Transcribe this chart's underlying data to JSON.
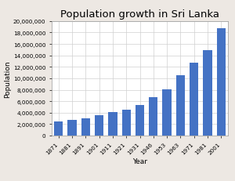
{
  "title": "Population growth in Sri Lanka",
  "xlabel": "Year",
  "ylabel": "Population",
  "years": [
    "1871",
    "1881",
    "1891",
    "1901",
    "1911",
    "1921",
    "1931",
    "1946",
    "1953",
    "1963",
    "1971",
    "1981",
    "2001"
  ],
  "values": [
    2400000,
    2760000,
    3000000,
    3565000,
    4106350,
    4498605,
    5306871,
    6657339,
    8097895,
    10582064,
    12711143,
    14846750,
    18797257
  ],
  "bar_color": "#4472C4",
  "ylim": [
    0,
    20000000
  ],
  "ytick_step": 2000000,
  "background_color": "#ede8e3",
  "plot_bg_color": "#ffffff",
  "title_fontsize": 9.5,
  "label_fontsize": 6.5,
  "tick_fontsize": 5.2
}
